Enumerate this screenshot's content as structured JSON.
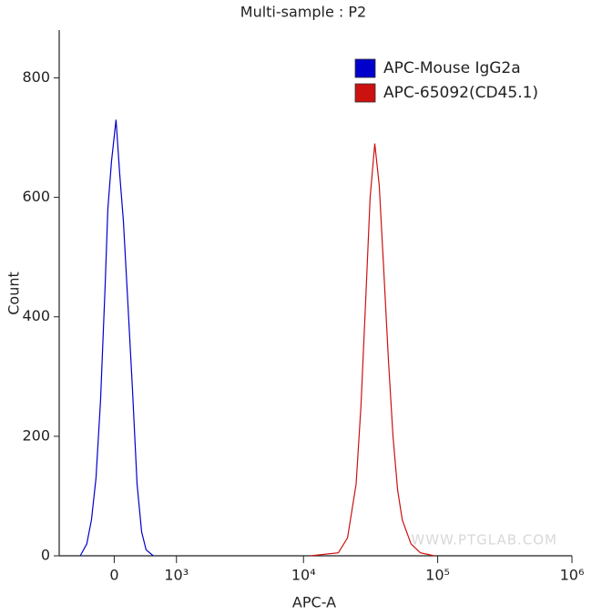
{
  "chart_data": {
    "type": "line",
    "title": "Multi-sample : P2",
    "x_label": "APC-A",
    "y_label": "Count",
    "x_scale": "biexponential",
    "xlim": [
      -850,
      1000000
    ],
    "ylim": [
      0,
      880
    ],
    "xticks": [
      0,
      {
        "value": 1000,
        "label": "10³"
      },
      {
        "value": 10000,
        "label": "10⁴"
      },
      {
        "value": 100000,
        "label": "10⁵"
      },
      {
        "value": 1000000,
        "label": "10⁶"
      }
    ],
    "yticks": [
      0,
      200,
      400,
      600,
      800
    ],
    "legend": "top-right",
    "watermark": "WWW.PTGLAB.COM",
    "series": [
      {
        "name": "APC-Mouse IgG2a",
        "color": "#0000cc",
        "x": [
          -480,
          -380,
          -313,
          -248,
          -185,
          -123,
          -86,
          -37,
          24,
          73,
          123,
          185,
          248,
          313,
          380,
          448,
          563
        ],
        "values": [
          0,
          20,
          60,
          130,
          260,
          450,
          580,
          660,
          730,
          640,
          560,
          420,
          280,
          120,
          40,
          10,
          0
        ]
      },
      {
        "name": "APC-65092(CD45.1)",
        "color": "#cc1111",
        "x": [
          11300,
          18200,
          21300,
          24700,
          26800,
          29000,
          31400,
          34000,
          36700,
          39600,
          42900,
          46500,
          50300,
          54500,
          63300,
          74300,
          94400
        ],
        "values": [
          0,
          5,
          30,
          120,
          250,
          420,
          600,
          690,
          620,
          480,
          330,
          200,
          110,
          60,
          20,
          5,
          0
        ]
      }
    ]
  }
}
